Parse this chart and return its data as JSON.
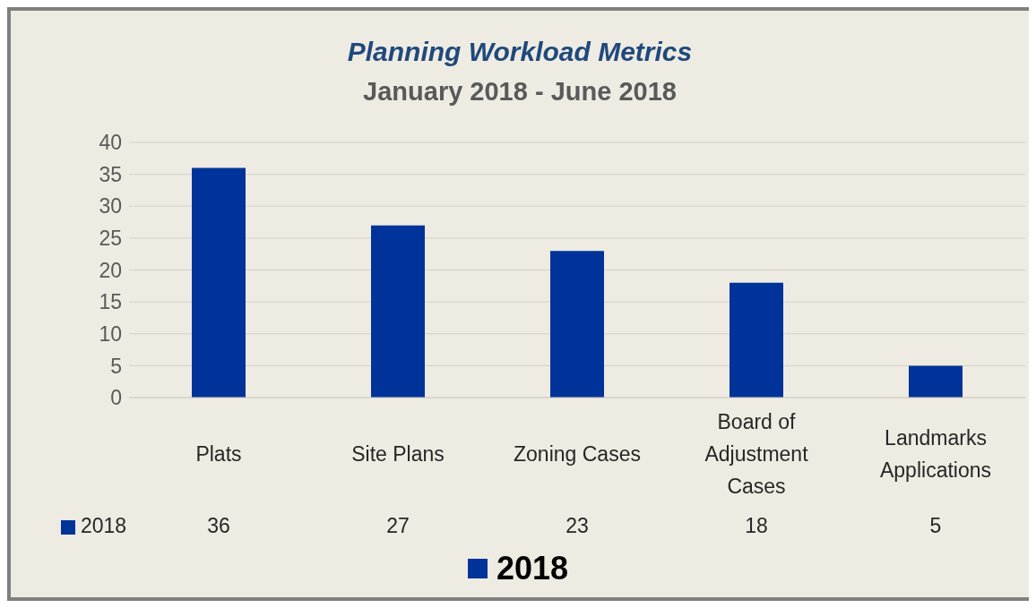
{
  "chart_data": {
    "type": "bar",
    "title": "Planning Workload Metrics",
    "subtitle": "January 2018 - June 2018",
    "categories": [
      "Plats",
      "Site Plans",
      "Zoning Cases",
      "Board of Adjustment Cases",
      "Landmarks Applications"
    ],
    "series": [
      {
        "name": "2018",
        "color": "#003399",
        "values": [
          36,
          27,
          23,
          18,
          5
        ]
      }
    ],
    "ylim": [
      0,
      40
    ],
    "yticks": [
      0,
      5,
      10,
      15,
      20,
      25,
      30,
      35,
      40
    ],
    "grid": "y",
    "legend": "bottom",
    "data_labels": true
  }
}
